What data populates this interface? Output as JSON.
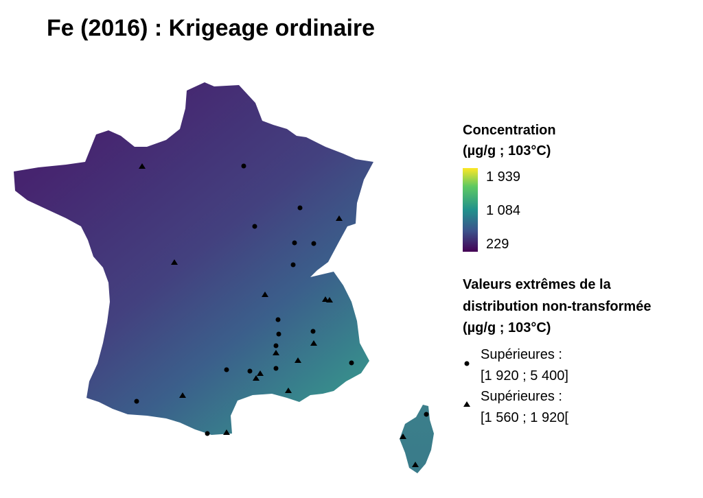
{
  "title": "Fe (2016) : Krigeage ordinaire",
  "legend": {
    "concentration_title_line1": "Concentration",
    "concentration_title_line2": "(µg/g ; 103°C)",
    "scale_max": "1 939",
    "scale_mid": "1 084",
    "scale_min": "229",
    "extremes_title_line1": "Valeurs extrêmes de la",
    "extremes_title_line2": "distribution non-transformée",
    "extremes_title_line3": "(µg/g ; 103°C)",
    "circle_label_line1": "Supérieures :",
    "circle_label_line2": "[1 920 ; 5 400]",
    "triangle_label_line1": "Supérieures :",
    "triangle_label_line2": "[1 560 ; 1 920["
  },
  "colors": {
    "low": "#440154",
    "mid": "#21918c",
    "high": "#fde725",
    "map_fill_north_west": "#472d7b",
    "map_fill_south_east": "#3a8a8c"
  }
}
